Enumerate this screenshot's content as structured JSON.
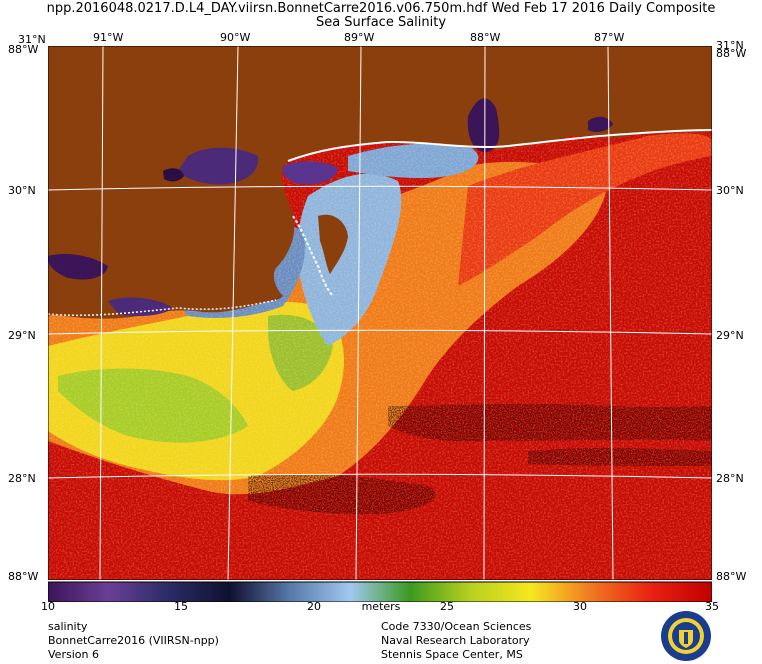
{
  "header": {
    "title_line1": "npp.2016048.0217.D.L4_DAY.viirsn.BonnetCarre2016.v06.750m.hdf    Wed Feb 17 2016 Daily Composite",
    "title_line2": "Sea Surface Salinity"
  },
  "map": {
    "lon_labels": [
      "91°W",
      "90°W",
      "89°W",
      "88°W",
      "87°W"
    ],
    "lat_labels": [
      "31°N",
      "30°N",
      "29°N",
      "28°N"
    ],
    "corner_top_left": "31°N",
    "corner_top_left_lon": "88°W",
    "corner_bottom_left": "88°W",
    "corner_bottom_right": "88°W",
    "land_color": "#8b3f0d",
    "grid_color": "#ffffff"
  },
  "colorbar": {
    "ticks": [
      "10",
      "15",
      "20",
      "25",
      "30",
      "35"
    ],
    "units": "meters",
    "range": [
      10,
      35
    ],
    "stops": [
      "#3c1458",
      "#6a3f96",
      "#2b2b66",
      "#101030",
      "#5878a8",
      "#a0c8f0",
      "#3c9a20",
      "#b8d020",
      "#f5e820",
      "#f07820",
      "#e82010",
      "#c00000"
    ]
  },
  "footer": {
    "left": [
      "salinity",
      "BonnetCarre2016 (VIIRSN-npp)",
      "Version 6"
    ],
    "right": [
      "Code 7330/Ocean Sciences",
      "Naval Research Laboratory",
      "Stennis Space Center, MS"
    ]
  },
  "seal": {
    "icon": "navy-seal-icon",
    "color": "#1a3d8f",
    "ring": "#f2d22e"
  }
}
